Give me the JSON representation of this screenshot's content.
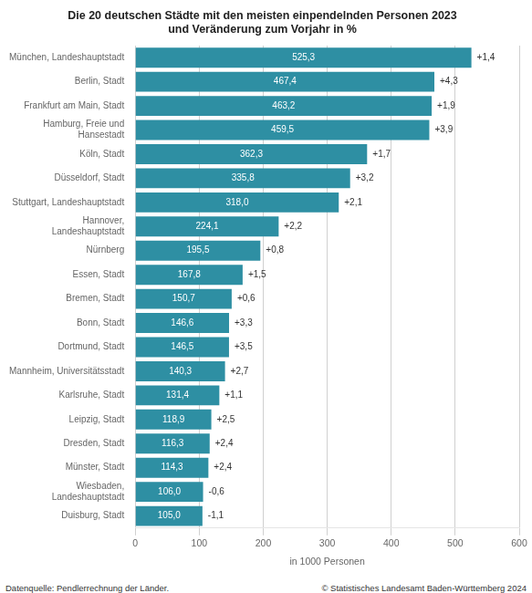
{
  "chart_data": {
    "type": "bar",
    "orientation": "horizontal",
    "title": "Die 20 deutschen Städte mit den meisten einpendelnden Personen 2023\nund Veränderung zum Vorjahr in %",
    "categories": [
      "München, Landeshauptstadt",
      "Berlin, Stadt",
      "Frankfurt am Main, Stadt",
      "Hamburg, Freie und\nHansestadt",
      "Köln, Stadt",
      "Düsseldorf, Stadt",
      "Stuttgart, Landeshauptstadt",
      "Hannover,\nLandeshauptstadt",
      "Nürnberg",
      "Essen, Stadt",
      "Bremen, Stadt",
      "Bonn, Stadt",
      "Dortmund, Stadt",
      "Mannheim, Universitätsstadt",
      "Karlsruhe, Stadt",
      "Leipzig, Stadt",
      "Dresden, Stadt",
      "Münster, Stadt",
      "Wiesbaden,\nLandeshauptstadt",
      "Duisburg, Stadt"
    ],
    "values": [
      525.3,
      467.4,
      463.2,
      459.5,
      362.3,
      335.8,
      318.0,
      224.1,
      195.5,
      167.8,
      150.7,
      146.6,
      146.5,
      140.3,
      131.4,
      118.9,
      116.3,
      114.3,
      106.0,
      105.0
    ],
    "value_labels": [
      "525,3",
      "467,4",
      "463,2",
      "459,5",
      "362,3",
      "335,8",
      "318,0",
      "224,1",
      "195,5",
      "167,8",
      "150,7",
      "146,6",
      "146,5",
      "140,3",
      "131,4",
      "118,9",
      "116,3",
      "114,3",
      "106,0",
      "105,0"
    ],
    "data_labels": true,
    "changes": [
      1.4,
      4.3,
      1.9,
      3.9,
      1.7,
      3.2,
      2.1,
      2.2,
      0.8,
      1.5,
      0.6,
      3.3,
      3.5,
      2.7,
      1.1,
      2.5,
      2.4,
      2.4,
      -0.6,
      -1.1
    ],
    "change_labels": [
      "+1,4",
      "+4,3",
      "+1,9",
      "+3,9",
      "+1,7",
      "+3,2",
      "+2,1",
      "+2,2",
      "+0,8",
      "+1,5",
      "+0,6",
      "+3,3",
      "+3,5",
      "+2,7",
      "+1,1",
      "+2,5",
      "+2,4",
      "+2,4",
      "-0,6",
      "-1,1"
    ],
    "color": "#2e8fa3",
    "xlabel": "in 1000 Personen",
    "xlim": [
      0,
      600
    ],
    "xticks": [
      0,
      100,
      200,
      300,
      400,
      500,
      600
    ],
    "grid": true,
    "footer_left": "Datenquelle: Pendlerrechnung der Länder.",
    "footer_right": "© Statistisches Landesamt Baden-Württemberg 2024"
  }
}
